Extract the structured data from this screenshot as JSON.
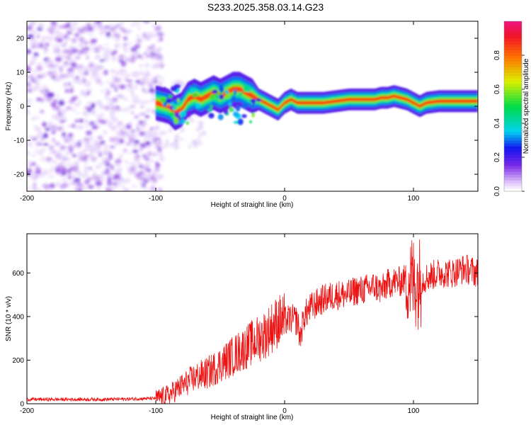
{
  "title": "S233.2025.358.03.14.G23",
  "chart_data": [
    {
      "type": "heatmap",
      "xlabel": "Height of straight line (km)",
      "ylabel": "Frequency (Hz)",
      "xlim": [
        -200,
        150
      ],
      "ylim": [
        -25,
        25
      ],
      "xticks": [
        -200,
        -100,
        0,
        100
      ],
      "yticks": [
        -20,
        -10,
        0,
        10,
        20
      ],
      "ridge": {
        "x": [
          -100,
          -90,
          -85,
          -80,
          -75,
          -70,
          -65,
          -60,
          -55,
          -50,
          -45,
          -40,
          -35,
          -30,
          -25,
          -20,
          -15,
          -10,
          -5,
          0,
          5,
          10,
          15,
          20,
          30,
          40,
          50,
          60,
          70,
          75,
          80,
          85,
          90,
          95,
          100,
          105,
          110,
          120,
          130,
          140,
          150
        ],
        "y": [
          1,
          0,
          -2,
          -1,
          2,
          3,
          2,
          3,
          4,
          3,
          4,
          5,
          5,
          4,
          3,
          2,
          1,
          0,
          -1,
          1,
          2,
          1,
          1,
          1,
          1,
          1.5,
          2,
          2,
          2,
          2.5,
          2.5,
          3,
          2.5,
          2,
          1,
          0,
          1,
          1.5,
          1.5,
          1.5,
          1.5
        ]
      },
      "colorbar": {
        "label": "Normalized spectral amplitude",
        "ticks": [
          "0.0",
          "0.2",
          "0.4",
          "0.6",
          "0.8"
        ],
        "tick_values": [
          0,
          0.2,
          0.4,
          0.6,
          0.8
        ],
        "range": [
          0,
          1
        ]
      }
    },
    {
      "type": "line",
      "xlabel": "Height of straight line (km)",
      "ylabel": "SNR (10 * v/v)",
      "xlim": [
        -200,
        150
      ],
      "ylim": [
        0,
        780
      ],
      "xticks": [
        -200,
        -100,
        0,
        100
      ],
      "yticks": [
        0,
        200,
        400,
        600
      ],
      "series": [
        {
          "name": "SNR",
          "color": "#ee1111",
          "x": [
            -200,
            -180,
            -160,
            -140,
            -120,
            -100,
            -90,
            -85,
            -80,
            -75,
            -70,
            -65,
            -60,
            -55,
            -50,
            -45,
            -40,
            -35,
            -30,
            -25,
            -20,
            -15,
            -10,
            -5,
            0,
            5,
            10,
            12,
            15,
            20,
            25,
            30,
            35,
            40,
            45,
            50,
            55,
            60,
            65,
            70,
            75,
            80,
            85,
            90,
            95,
            100,
            105,
            110,
            115,
            120,
            125,
            130,
            135,
            140,
            145,
            150
          ],
          "values": [
            20,
            20,
            20,
            20,
            22,
            25,
            40,
            60,
            80,
            100,
            120,
            130,
            140,
            160,
            180,
            200,
            220,
            240,
            260,
            280,
            300,
            320,
            350,
            380,
            380,
            390,
            380,
            300,
            400,
            440,
            460,
            480,
            490,
            500,
            500,
            500,
            520,
            520,
            530,
            540,
            520,
            550,
            560,
            560,
            580,
            560,
            560,
            580,
            590,
            600,
            600,
            600,
            610,
            620,
            610,
            600
          ]
        }
      ]
    }
  ]
}
